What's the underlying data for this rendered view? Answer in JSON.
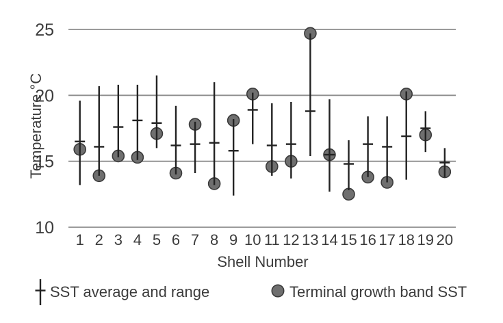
{
  "chart_data": {
    "type": "scatter",
    "title": "",
    "xlabel": "Shell Number",
    "ylabel": "Temperature °C",
    "x_ticks": [
      1,
      2,
      3,
      4,
      5,
      6,
      7,
      8,
      9,
      10,
      11,
      12,
      13,
      14,
      15,
      16,
      17,
      18,
      19,
      20
    ],
    "y_ticks": [
      10,
      15,
      20,
      25
    ],
    "ylim": [
      10,
      25
    ],
    "grid": "horizontal-only",
    "legend_position": "bottom",
    "categories": [
      1,
      2,
      3,
      4,
      5,
      6,
      7,
      8,
      9,
      10,
      11,
      12,
      13,
      14,
      15,
      16,
      17,
      18,
      19,
      20
    ],
    "series": [
      {
        "name": "SST average and range",
        "type": "range-bar-with-average-tick",
        "min": [
          13.2,
          13.9,
          15.3,
          15.1,
          16.0,
          14.0,
          14.1,
          13.2,
          12.4,
          16.3,
          13.9,
          13.7,
          15.4,
          12.7,
          12.8,
          13.8,
          13.4,
          13.6,
          15.7,
          13.8
        ],
        "avg": [
          16.5,
          16.1,
          17.6,
          18.1,
          17.9,
          16.2,
          16.3,
          16.4,
          15.8,
          18.9,
          16.2,
          16.3,
          18.8,
          15.5,
          14.8,
          16.3,
          16.1,
          16.9,
          17.5,
          14.9
        ],
        "max": [
          19.6,
          20.7,
          20.8,
          20.8,
          21.5,
          19.2,
          18.0,
          21.0,
          18.2,
          20.2,
          19.4,
          19.5,
          24.7,
          19.7,
          16.6,
          18.4,
          18.4,
          20.3,
          18.8,
          16.0
        ]
      },
      {
        "name": "Terminal growth band SST",
        "type": "point",
        "values": [
          15.9,
          13.9,
          15.4,
          15.3,
          17.1,
          14.1,
          17.8,
          13.3,
          18.1,
          20.1,
          14.6,
          15.0,
          24.7,
          15.5,
          12.5,
          13.8,
          13.4,
          20.1,
          17.0,
          14.2
        ]
      }
    ]
  },
  "axes": {
    "y_title": "Temperature °C",
    "x_title": "Shell Number"
  },
  "legend": {
    "items": [
      {
        "label": "SST average and range",
        "symbol": "error-bar-icon"
      },
      {
        "label": "Terminal growth band SST",
        "symbol": "filled-circle-icon"
      }
    ]
  },
  "colors": {
    "gridline": "#8d8d8d",
    "bar": "#222222",
    "dot_fill": "#6f6f6f",
    "dot_stroke": "#3a3a3a",
    "text": "#3c3c3c"
  }
}
